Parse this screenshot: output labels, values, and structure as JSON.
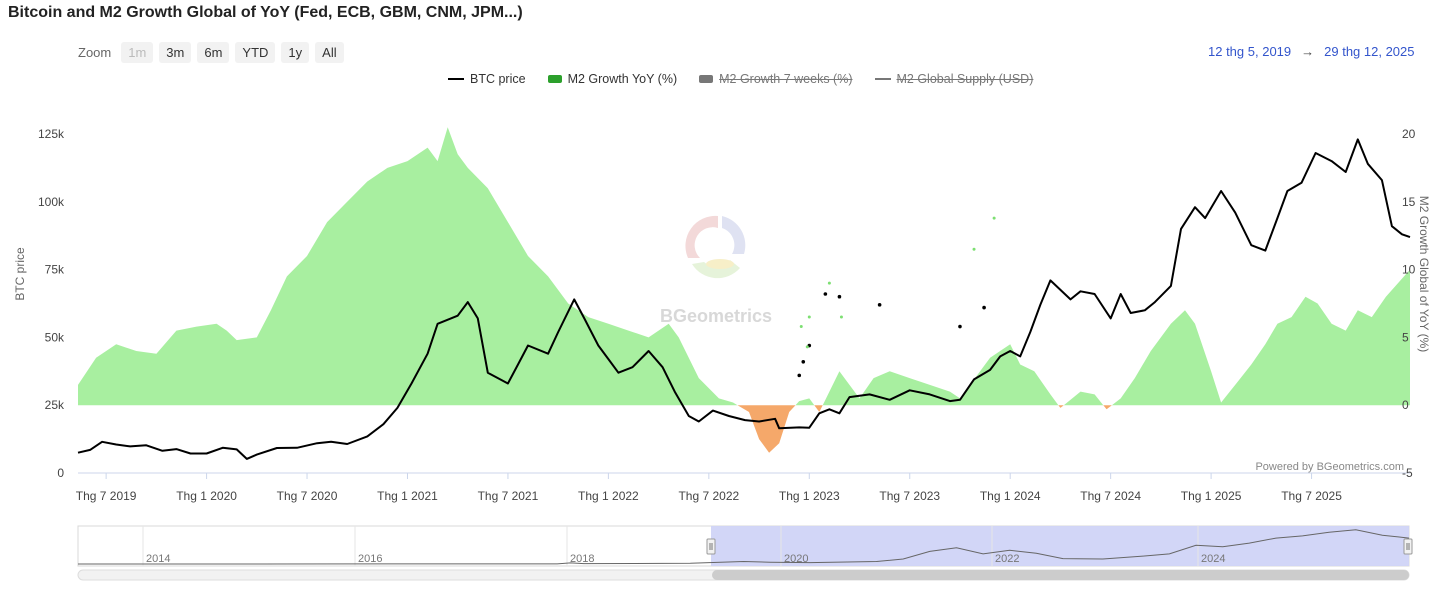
{
  "title": "Bitcoin and M2 Growth Global of YoY (Fed, ECB, GBM, CNM, JPM...)",
  "zoom": {
    "label": "Zoom",
    "buttons": [
      "1m",
      "3m",
      "6m",
      "YTD",
      "1y",
      "All"
    ],
    "disabled": "1m"
  },
  "range": {
    "from": "12 thg 5, 2019",
    "arrow": "→",
    "to": "29 thg 12, 2025"
  },
  "legend": [
    {
      "label": "BTC price",
      "kind": "line",
      "color": "#000000",
      "hidden": false
    },
    {
      "label": "M2 Growth YoY (%)",
      "kind": "box",
      "color": "#2ca02c",
      "hidden": false
    },
    {
      "label": "M2 Growth 7 weeks (%)",
      "kind": "box",
      "color": "#777777",
      "hidden": true
    },
    {
      "label": "M2 Global Supply (USD)",
      "kind": "line",
      "color": "#777777",
      "hidden": true
    }
  ],
  "watermark": "BGeometrics",
  "credit": "Powered by BGeometrics.com",
  "colors": {
    "positive_fill": "#a8efa0",
    "negative_fill": "#f5a86a",
    "btc_line": "#000000",
    "navigator_fill": "#d0d4f7"
  },
  "chart_data": {
    "type": "area+line",
    "x_range": [
      2019.36,
      2025.99
    ],
    "x_ticks": [
      {
        "t": 2019.5,
        "label": "Thg 7 2019"
      },
      {
        "t": 2020.0,
        "label": "Thg 1 2020"
      },
      {
        "t": 2020.5,
        "label": "Thg 7 2020"
      },
      {
        "t": 2021.0,
        "label": "Thg 1 2021"
      },
      {
        "t": 2021.5,
        "label": "Thg 7 2021"
      },
      {
        "t": 2022.0,
        "label": "Thg 1 2022"
      },
      {
        "t": 2022.5,
        "label": "Thg 7 2022"
      },
      {
        "t": 2023.0,
        "label": "Thg 1 2023"
      },
      {
        "t": 2023.5,
        "label": "Thg 7 2023"
      },
      {
        "t": 2024.0,
        "label": "Thg 1 2024"
      },
      {
        "t": 2024.5,
        "label": "Thg 7 2024"
      },
      {
        "t": 2025.0,
        "label": "Thg 1 2025"
      },
      {
        "t": 2025.5,
        "label": "Thg 7 2025"
      }
    ],
    "y_left": {
      "title": "BTC price",
      "min": 0,
      "max": 125000,
      "ticks": [
        0,
        25000,
        50000,
        75000,
        100000,
        125000
      ],
      "tick_labels": [
        "0",
        "25k",
        "50k",
        "75k",
        "100k",
        "125k"
      ]
    },
    "y_right": {
      "title": "M2 Growth Global of YoY (%)",
      "min": -5,
      "max": 20,
      "ticks": [
        -5,
        0,
        5,
        10,
        15,
        20
      ],
      "tick_labels": [
        "-5",
        "0",
        "5",
        "10",
        "15",
        "20"
      ]
    },
    "series": [
      {
        "name": "M2 Growth YoY (%)",
        "axis": "right",
        "kind": "area",
        "points": [
          [
            2019.36,
            1.5
          ],
          [
            2019.45,
            3.5
          ],
          [
            2019.55,
            4.5
          ],
          [
            2019.65,
            4.0
          ],
          [
            2019.75,
            3.8
          ],
          [
            2019.85,
            5.5
          ],
          [
            2019.95,
            5.8
          ],
          [
            2020.05,
            6.0
          ],
          [
            2020.1,
            5.5
          ],
          [
            2020.15,
            4.8
          ],
          [
            2020.25,
            5.0
          ],
          [
            2020.32,
            7.0
          ],
          [
            2020.4,
            9.5
          ],
          [
            2020.5,
            11.0
          ],
          [
            2020.6,
            13.5
          ],
          [
            2020.7,
            15.0
          ],
          [
            2020.8,
            16.5
          ],
          [
            2020.9,
            17.5
          ],
          [
            2021.0,
            18.0
          ],
          [
            2021.1,
            19.0
          ],
          [
            2021.15,
            18.0
          ],
          [
            2021.2,
            20.5
          ],
          [
            2021.25,
            18.5
          ],
          [
            2021.3,
            17.5
          ],
          [
            2021.4,
            16.0
          ],
          [
            2021.5,
            13.5
          ],
          [
            2021.6,
            11.0
          ],
          [
            2021.7,
            9.5
          ],
          [
            2021.8,
            7.5
          ],
          [
            2021.9,
            6.5
          ],
          [
            2022.0,
            6.0
          ],
          [
            2022.1,
            5.5
          ],
          [
            2022.2,
            5.0
          ],
          [
            2022.3,
            6.0
          ],
          [
            2022.35,
            5.0
          ],
          [
            2022.45,
            2.0
          ],
          [
            2022.55,
            0.5
          ],
          [
            2022.62,
            0.2
          ],
          [
            2022.7,
            -0.5
          ],
          [
            2022.75,
            -2.5
          ],
          [
            2022.8,
            -3.5
          ],
          [
            2022.85,
            -2.8
          ],
          [
            2022.9,
            -0.5
          ],
          [
            2022.95,
            0.3
          ],
          [
            2023.0,
            0.5
          ],
          [
            2023.05,
            -0.5
          ],
          [
            2023.1,
            1.0
          ],
          [
            2023.15,
            2.5
          ],
          [
            2023.2,
            1.5
          ],
          [
            2023.25,
            0.5
          ],
          [
            2023.32,
            2.0
          ],
          [
            2023.4,
            2.5
          ],
          [
            2023.5,
            2.0
          ],
          [
            2023.6,
            1.5
          ],
          [
            2023.7,
            1.0
          ],
          [
            2023.75,
            0.5
          ],
          [
            2023.8,
            1.5
          ],
          [
            2023.9,
            3.5
          ],
          [
            2024.0,
            4.5
          ],
          [
            2024.05,
            3.0
          ],
          [
            2024.12,
            2.5
          ],
          [
            2024.2,
            0.8
          ],
          [
            2024.25,
            -0.2
          ],
          [
            2024.35,
            1.0
          ],
          [
            2024.42,
            0.8
          ],
          [
            2024.48,
            -0.3
          ],
          [
            2024.55,
            0.5
          ],
          [
            2024.62,
            2.0
          ],
          [
            2024.7,
            4.0
          ],
          [
            2024.8,
            6.0
          ],
          [
            2024.87,
            7.0
          ],
          [
            2024.92,
            6.0
          ],
          [
            2025.0,
            2.5
          ],
          [
            2025.05,
            0.2
          ],
          [
            2025.12,
            1.5
          ],
          [
            2025.2,
            3.0
          ],
          [
            2025.27,
            4.5
          ],
          [
            2025.33,
            6.0
          ],
          [
            2025.4,
            6.5
          ],
          [
            2025.47,
            8.0
          ],
          [
            2025.53,
            7.5
          ],
          [
            2025.6,
            6.0
          ],
          [
            2025.67,
            5.5
          ],
          [
            2025.73,
            7.0
          ],
          [
            2025.8,
            6.5
          ],
          [
            2025.87,
            8.0
          ],
          [
            2025.93,
            9.0
          ],
          [
            2025.99,
            10.0
          ]
        ]
      },
      {
        "name": "BTC price",
        "axis": "left",
        "kind": "line",
        "points": [
          [
            2019.36,
            7500
          ],
          [
            2019.42,
            8500
          ],
          [
            2019.48,
            11500
          ],
          [
            2019.55,
            10500
          ],
          [
            2019.62,
            9800
          ],
          [
            2019.7,
            10200
          ],
          [
            2019.78,
            8200
          ],
          [
            2019.85,
            8800
          ],
          [
            2019.92,
            7200
          ],
          [
            2020.0,
            7200
          ],
          [
            2020.08,
            9300
          ],
          [
            2020.15,
            8700
          ],
          [
            2020.2,
            5200
          ],
          [
            2020.25,
            6800
          ],
          [
            2020.35,
            9200
          ],
          [
            2020.45,
            9300
          ],
          [
            2020.55,
            11000
          ],
          [
            2020.62,
            11500
          ],
          [
            2020.7,
            10700
          ],
          [
            2020.8,
            13500
          ],
          [
            2020.88,
            18000
          ],
          [
            2020.95,
            24000
          ],
          [
            2021.02,
            33000
          ],
          [
            2021.1,
            44000
          ],
          [
            2021.15,
            55000
          ],
          [
            2021.25,
            58000
          ],
          [
            2021.3,
            63000
          ],
          [
            2021.35,
            57000
          ],
          [
            2021.4,
            37000
          ],
          [
            2021.45,
            35000
          ],
          [
            2021.5,
            33000
          ],
          [
            2021.55,
            40000
          ],
          [
            2021.6,
            47000
          ],
          [
            2021.7,
            44000
          ],
          [
            2021.75,
            52000
          ],
          [
            2021.83,
            64000
          ],
          [
            2021.88,
            57000
          ],
          [
            2021.95,
            47000
          ],
          [
            2022.0,
            42000
          ],
          [
            2022.05,
            37000
          ],
          [
            2022.12,
            39000
          ],
          [
            2022.2,
            45000
          ],
          [
            2022.27,
            39000
          ],
          [
            2022.33,
            30000
          ],
          [
            2022.4,
            21000
          ],
          [
            2022.45,
            19000
          ],
          [
            2022.52,
            23000
          ],
          [
            2022.6,
            21000
          ],
          [
            2022.68,
            19500
          ],
          [
            2022.75,
            19000
          ],
          [
            2022.83,
            20000
          ],
          [
            2022.85,
            16500
          ],
          [
            2022.95,
            16800
          ],
          [
            2023.0,
            16700
          ],
          [
            2023.05,
            22000
          ],
          [
            2023.1,
            23500
          ],
          [
            2023.15,
            22000
          ],
          [
            2023.2,
            28000
          ],
          [
            2023.3,
            29000
          ],
          [
            2023.4,
            27000
          ],
          [
            2023.5,
            30500
          ],
          [
            2023.6,
            29000
          ],
          [
            2023.7,
            26500
          ],
          [
            2023.75,
            27000
          ],
          [
            2023.82,
            34500
          ],
          [
            2023.9,
            38000
          ],
          [
            2023.95,
            43000
          ],
          [
            2024.0,
            45000
          ],
          [
            2024.05,
            43000
          ],
          [
            2024.1,
            52000
          ],
          [
            2024.15,
            62000
          ],
          [
            2024.2,
            71000
          ],
          [
            2024.3,
            64000
          ],
          [
            2024.35,
            67000
          ],
          [
            2024.42,
            66000
          ],
          [
            2024.5,
            57000
          ],
          [
            2024.55,
            66000
          ],
          [
            2024.6,
            59000
          ],
          [
            2024.67,
            60000
          ],
          [
            2024.72,
            63000
          ],
          [
            2024.8,
            69000
          ],
          [
            2024.85,
            90000
          ],
          [
            2024.92,
            98000
          ],
          [
            2024.97,
            94000
          ],
          [
            2025.05,
            104000
          ],
          [
            2025.12,
            96000
          ],
          [
            2025.2,
            84000
          ],
          [
            2025.27,
            82000
          ],
          [
            2025.33,
            94000
          ],
          [
            2025.38,
            104000
          ],
          [
            2025.45,
            107000
          ],
          [
            2025.52,
            118000
          ],
          [
            2025.6,
            115000
          ],
          [
            2025.67,
            111000
          ],
          [
            2025.73,
            123000
          ],
          [
            2025.78,
            114000
          ],
          [
            2025.85,
            108000
          ],
          [
            2025.9,
            91000
          ],
          [
            2025.95,
            88000
          ],
          [
            2025.99,
            87000
          ]
        ]
      },
      {
        "name": "BTC price (gap points)",
        "axis": "left",
        "kind": "dots",
        "points": [
          [
            2022.95,
            36000
          ],
          [
            2022.97,
            41000
          ],
          [
            2023.0,
            47000
          ],
          [
            2023.08,
            66000
          ],
          [
            2023.15,
            65000
          ],
          [
            2023.35,
            62000
          ],
          [
            2023.75,
            54000
          ],
          [
            2023.87,
            61000
          ]
        ]
      },
      {
        "name": "M2 Growth YoY (%) (gap points)",
        "axis": "right",
        "kind": "dots",
        "points": [
          [
            2022.96,
            5.8
          ],
          [
            2022.99,
            4.3
          ],
          [
            2023.0,
            6.5
          ],
          [
            2023.1,
            9.0
          ],
          [
            2023.16,
            6.5
          ],
          [
            2023.82,
            11.5
          ],
          [
            2023.92,
            13.8
          ]
        ]
      }
    ],
    "navigator": {
      "x_labels": [
        "2014",
        "2016",
        "2018",
        "2020",
        "2022",
        "2024"
      ],
      "selected_from": "2019",
      "selected_to": "2025"
    }
  }
}
